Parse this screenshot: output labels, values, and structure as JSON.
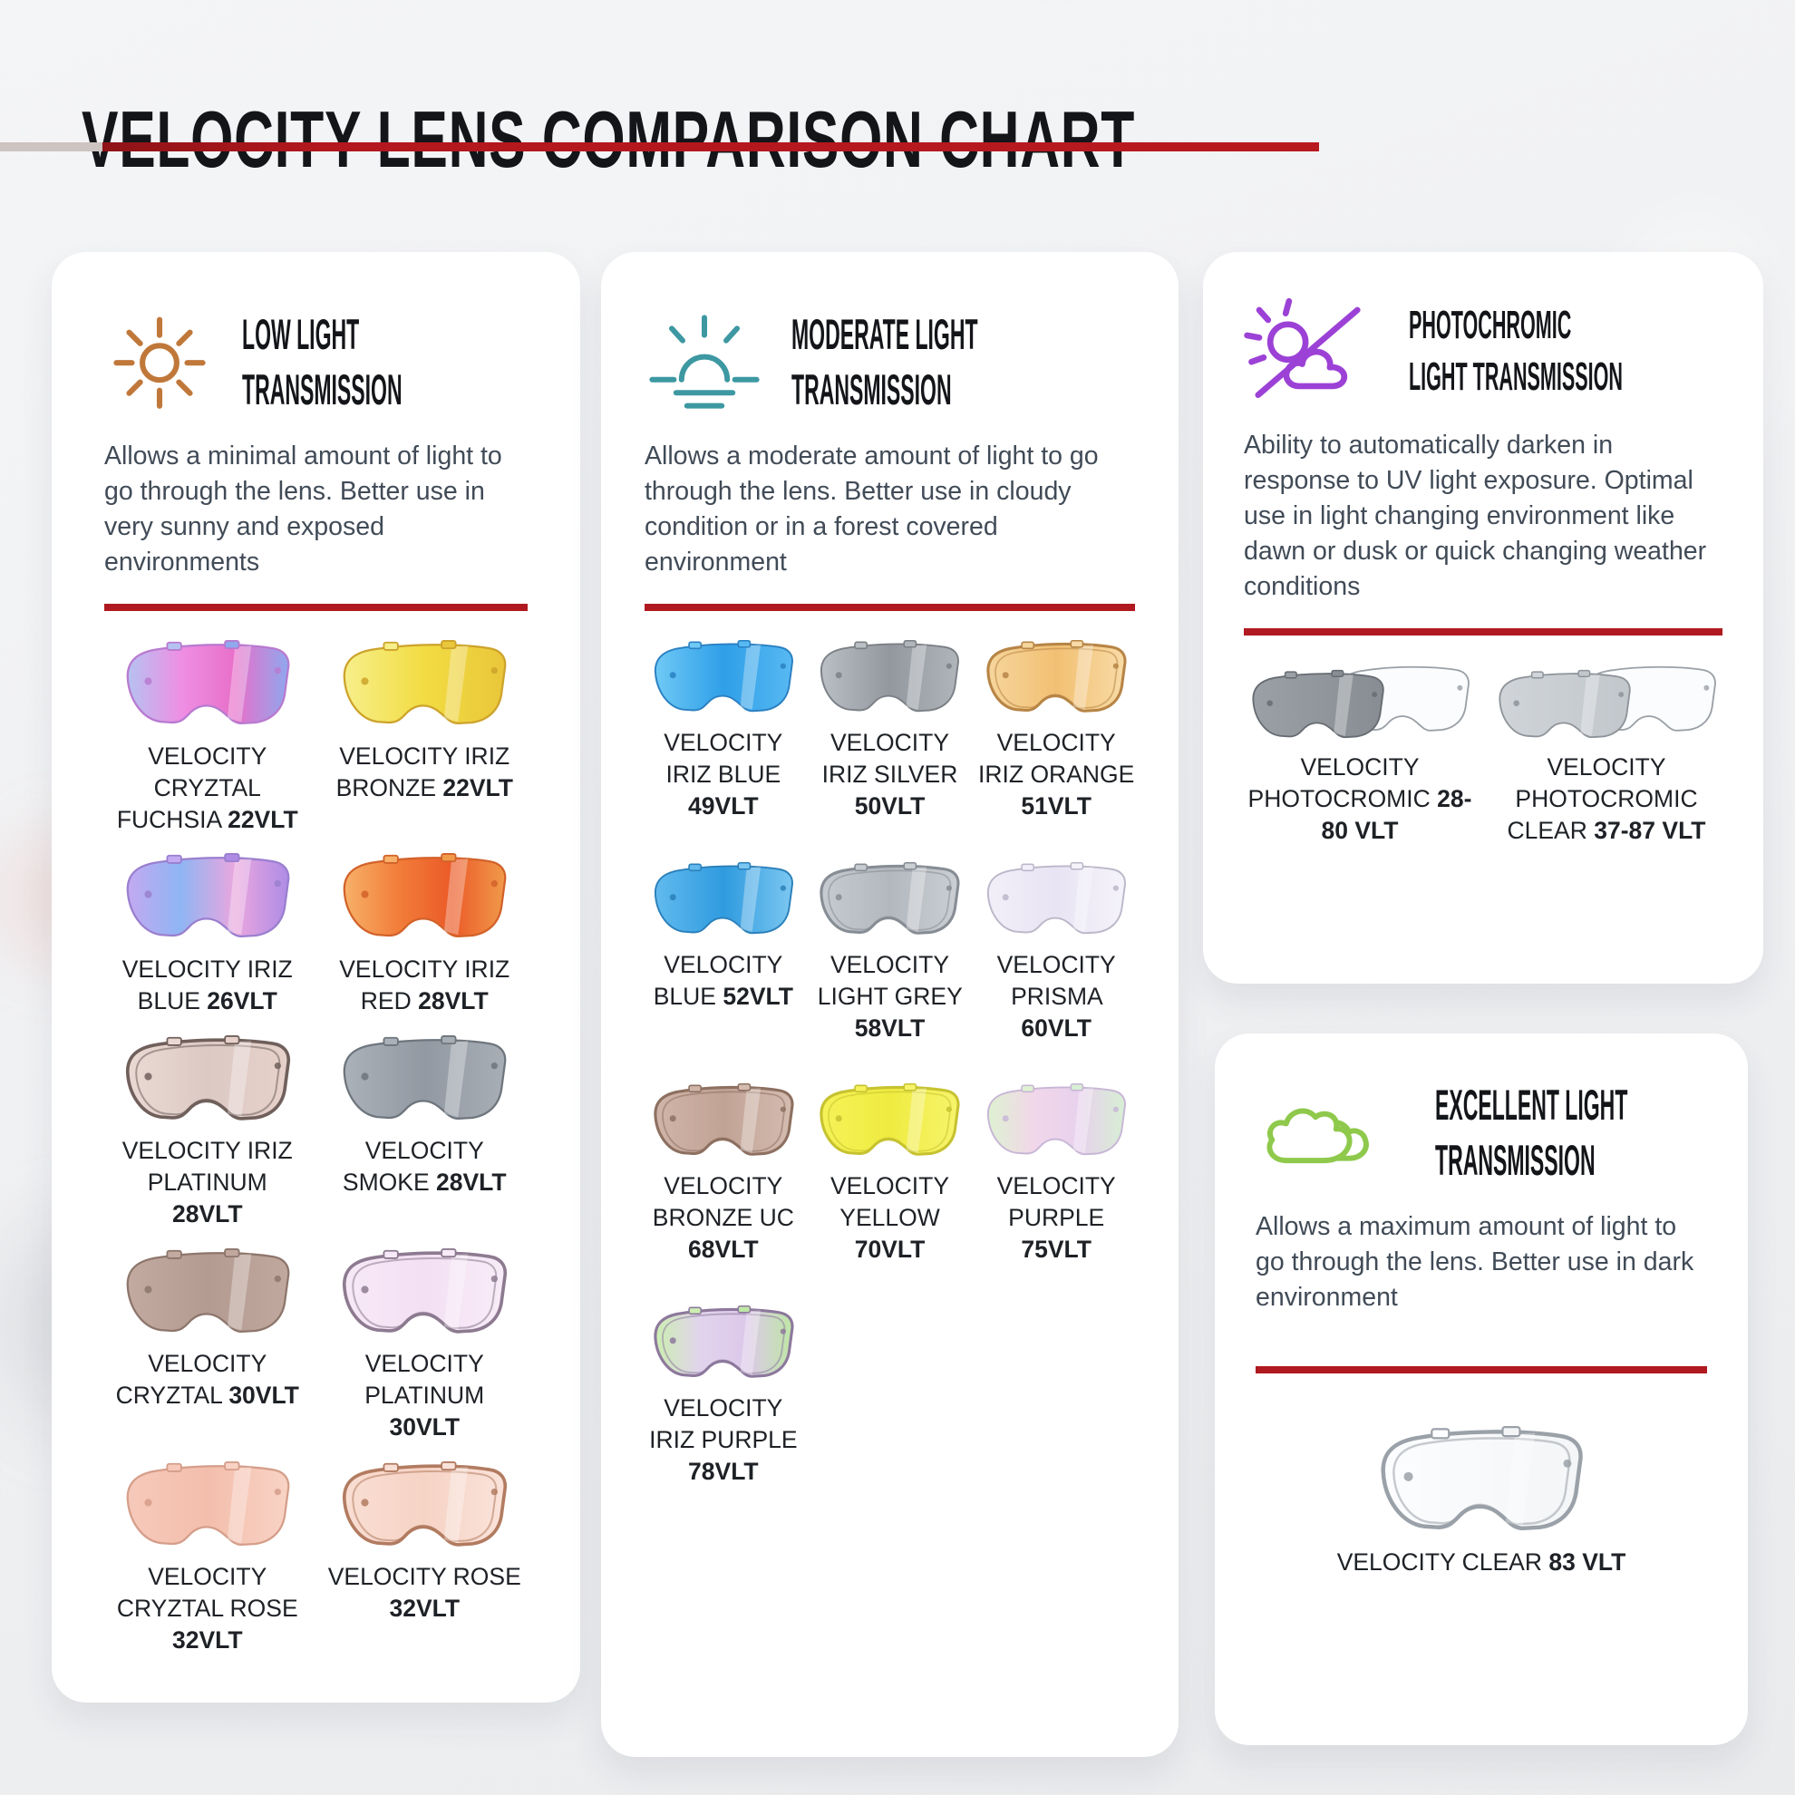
{
  "title": "VELOCITY LENS COMPARISON CHART",
  "accent_color": "#b0191f",
  "background_color": "#f2f3f5",
  "cards": {
    "low": {
      "heading1": "LOW LIGHT",
      "heading2": "TRANSMISSION",
      "icon": "sun-icon",
      "icon_color": "#c0783a",
      "description": "Allows a minimal amount of light to go through the lens. Better use in very sunny and exposed environments",
      "lenses": [
        {
          "name": "VELOCITY CRYZTAL FUCHSIA",
          "vlt": "22VLT",
          "fill": [
            "#b5c2f1",
            "#ee8fe4",
            "#e86fc9",
            "#8fa8ee"
          ],
          "stroke": "#b87ad0"
        },
        {
          "name": "VELOCITY IRIZ BRONZE",
          "vlt": "22VLT",
          "fill": [
            "#f6ef8a",
            "#f2dc42",
            "#e9c63a"
          ],
          "stroke": "#cda32c"
        },
        {
          "name": "VELOCITY IRIZ BLUE",
          "vlt": "26VLT",
          "fill": [
            "#c3a9f1",
            "#8fb5f3",
            "#eaa6de",
            "#ae8ce6"
          ],
          "stroke": "#9a7fcf"
        },
        {
          "name": "VELOCITY IRIZ RED",
          "vlt": "28VLT",
          "fill": [
            "#f7b169",
            "#f27e3a",
            "#eb5a28",
            "#f09a4a"
          ],
          "stroke": "#d2622a"
        },
        {
          "name": "VELOCITY IRIZ PLATINUM",
          "vlt": "28VLT",
          "fill": [
            "#ead9d3",
            "#dcc9c4",
            "#e7d1ca"
          ],
          "stroke": "#70605c",
          "outline": true
        },
        {
          "name": "VELOCITY SMOKE",
          "vlt": "28VLT",
          "fill": [
            "#aab1b9",
            "#9299a2",
            "#a7aeb6"
          ],
          "stroke": "#6e757d"
        },
        {
          "name": "VELOCITY CRYZTAL",
          "vlt": "30VLT",
          "fill": [
            "#c2aaa0",
            "#b39b91",
            "#c0a89e"
          ],
          "stroke": "#8d766c"
        },
        {
          "name": "VELOCITY PLATINUM",
          "vlt": "30VLT",
          "fill": [
            "#f7e9f7",
            "#f3e0f3",
            "#f8ecf8"
          ],
          "stroke": "#8d7a90",
          "outline": true
        },
        {
          "name": "VELOCITY CRYZTAL ROSE",
          "vlt": "32VLT",
          "fill": [
            "#f6c9ba",
            "#f4beac",
            "#f8d3c5"
          ],
          "stroke": "#d59e8a"
        },
        {
          "name": "VELOCITY ROSE",
          "vlt": "32VLT",
          "fill": [
            "#f9ded3",
            "#f6d3c5",
            "#fae3da"
          ],
          "stroke": "#b27b60",
          "outline": true
        }
      ]
    },
    "moderate": {
      "heading1": "MODERATE LIGHT",
      "heading2": "TRANSMISSION",
      "icon": "sunrise-icon",
      "icon_color": "#3d98a2",
      "description": "Allows a moderate amount of light to go through the lens. Better use in cloudy condition or in a forest covered environment",
      "lenses": [
        {
          "name": "VELOCITY IRIZ BLUE",
          "vlt": "49VLT",
          "fill": [
            "#6fc9f5",
            "#2f9fe8",
            "#57b9f2"
          ],
          "stroke": "#2a80c2"
        },
        {
          "name": "VELOCITY IRIZ SILVER",
          "vlt": "50VLT",
          "fill": [
            "#babfc4",
            "#93989e",
            "#b0b5ba"
          ],
          "stroke": "#7b8086"
        },
        {
          "name": "VELOCITY IRIZ ORANGE",
          "vlt": "51VLT",
          "fill": [
            "#f6d59c",
            "#f2c073",
            "#f8dba6"
          ],
          "stroke": "#b78546",
          "outline": true
        },
        {
          "name": "VELOCITY BLUE",
          "vlt": "52VLT",
          "fill": [
            "#61baee",
            "#2f9bdf",
            "#7cc7f1"
          ],
          "stroke": "#2b80ba"
        },
        {
          "name": "VELOCITY LIGHT GREY",
          "vlt": "58VLT",
          "fill": [
            "#c7cbd1",
            "#b3b8be",
            "#cbcfd4"
          ],
          "stroke": "#878d94",
          "outline": true
        },
        {
          "name": "VELOCITY PRISMA",
          "vlt": "60VLT",
          "fill": [
            "#f2eff9",
            "#e8e4f3",
            "#f5f3fa"
          ],
          "stroke": "#bcb7c9"
        },
        {
          "name": "VELOCITY BRONZE UC",
          "vlt": "68VLT",
          "fill": [
            "#cfb5a8",
            "#c1a395",
            "#d4bcb0"
          ],
          "stroke": "#8d7060",
          "outline": true
        },
        {
          "name": "VELOCITY YELLOW",
          "vlt": "70VLT",
          "fill": [
            "#f5f258",
            "#efeb40",
            "#f7f46c"
          ],
          "stroke": "#c6c230",
          "outline": true
        },
        {
          "name": "VELOCITY PURPLE",
          "vlt": "75VLT",
          "fill": [
            "#def1d1",
            "#f1d7e9",
            "#e7d1ed",
            "#d7efd3"
          ],
          "stroke": "#c7b6d6"
        },
        {
          "name": "VELOCITY IRIZ PURPLE",
          "vlt": "78VLT",
          "fill": [
            "#cceeb1",
            "#e1d3ed",
            "#dcc8e9",
            "#bee7a5"
          ],
          "stroke": "#8d789c",
          "outline": true
        }
      ]
    },
    "photochromic": {
      "heading1": "PHOTOCHROMIC",
      "heading2": "LIGHT TRANSMISSION",
      "icon": "sun-cloud-slash-icon",
      "icon_color": "#9c41d6",
      "description": "Ability to automatically darken in response to UV light exposure. Optimal use in light changing environment like dawn or dusk or quick changing weather conditions",
      "lenses": [
        {
          "name": "VELOCITY PHOTOCROMIC",
          "vlt": "28-80 VLT",
          "fill": [
            "#9aa0a5",
            "#878d92"
          ],
          "stroke": "#666c72",
          "pair": true
        },
        {
          "name": "VELOCITY PHOTOCROMIC CLEAR",
          "vlt": "37-87 VLT",
          "fill": [
            "#d0d4d8",
            "#c2c7cc"
          ],
          "stroke": "#8e949a",
          "pair": true
        }
      ]
    },
    "excellent": {
      "heading1": "EXCELLENT LIGHT",
      "heading2": "TRANSMISSION",
      "icon": "clouds-icon",
      "icon_color": "#8fc94c",
      "description": "Allows a maximum amount of light to go through the lens. Better use in dark environment",
      "lenses": [
        {
          "name": "VELOCITY CLEAR",
          "vlt": "83 VLT",
          "fill": [
            "#fcfdfe",
            "#f3f5f7"
          ],
          "stroke": "#9aa1a8",
          "outline": true
        }
      ]
    }
  },
  "pair_back": {
    "fill": "#fbfcfd",
    "stroke": "#9aa0a6"
  }
}
